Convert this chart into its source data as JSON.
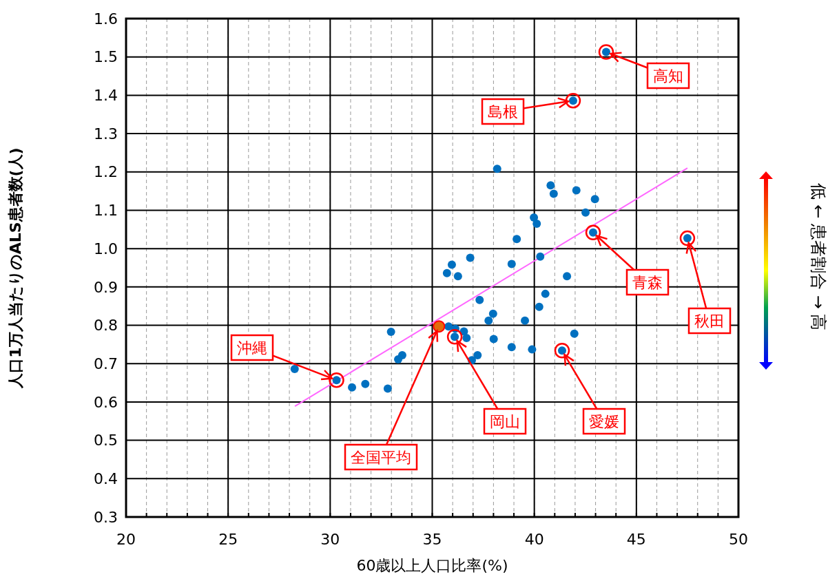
{
  "chart_data": {
    "type": "scatter",
    "xlabel": "60歳以上人口比率(%)",
    "ylabel": "人口1万人当たりのALS患者数(人)",
    "xlim": [
      20,
      50
    ],
    "xticks": [
      20,
      25,
      30,
      35,
      40,
      45,
      50
    ],
    "ylim": [
      0.3,
      1.6
    ],
    "yticks": [
      0.3,
      0.4,
      0.5,
      0.6,
      0.7,
      0.8,
      0.9,
      {
        "value": 1,
        "label": "1.0"
      },
      1.1,
      1.2,
      1.3,
      1.4,
      1.5,
      1.6
    ],
    "grid": true,
    "marker": "circle",
    "series": [
      {
        "type": "line",
        "marker": "none",
        "color": "#ff66ff",
        "x": [
          28.27,
          47.5
        ],
        "values": [
          0.589,
          1.21
        ]
      },
      {
        "color": "#0070c0",
        "x": [
          38.18,
          40.8,
          40.95,
          42.06,
          42.97,
          42.51,
          39.98,
          40.12,
          42.88,
          39.14,
          36.86,
          35.96,
          35.72,
          36.26,
          38.89,
          40.29,
          41.6,
          40.54,
          40.24,
          37.32,
          37.98,
          37.76,
          39.54,
          35.8,
          36.13,
          36.55,
          36.68,
          36.1,
          38.01,
          41.96,
          38.89,
          39.89,
          41.36,
          37.22,
          36.94,
          28.26,
          30.31,
          31.07,
          31.72,
          32.82,
          32.98,
          33.33,
          33.53,
          43.52,
          41.9,
          47.5
        ],
        "values": [
          1.208,
          1.165,
          1.143,
          1.152,
          1.129,
          1.094,
          1.081,
          1.065,
          1.042,
          1.025,
          0.976,
          0.958,
          0.936,
          0.928,
          0.96,
          0.979,
          0.928,
          0.882,
          0.848,
          0.866,
          0.83,
          0.812,
          0.812,
          0.797,
          0.791,
          0.784,
          0.767,
          0.77,
          0.764,
          0.778,
          0.743,
          0.737,
          0.734,
          0.722,
          0.709,
          0.686,
          0.657,
          0.638,
          0.647,
          0.635,
          0.783,
          0.711,
          0.722,
          1.513,
          1.386,
          1.027
        ]
      },
      {
        "color": "#e46c0a",
        "x": [
          35.33
        ],
        "values": [
          0.797
        ]
      }
    ],
    "annotations": [
      {
        "text": "高知",
        "x": 43.52,
        "y": 1.513
      },
      {
        "text": "島根",
        "x": 41.9,
        "y": 1.386
      },
      {
        "text": "青森",
        "x": 42.88,
        "y": 1.042
      },
      {
        "text": "秋田",
        "x": 47.5,
        "y": 1.027
      },
      {
        "text": "沖縄",
        "x": 30.31,
        "y": 0.657
      },
      {
        "text": "全国平均",
        "x": 35.33,
        "y": 0.797
      },
      {
        "text": "岡山",
        "x": 36.1,
        "y": 0.77
      },
      {
        "text": "愛媛",
        "x": 41.36,
        "y": 0.734
      },
      "低 ← 患者割合 → 高"
    ]
  }
}
